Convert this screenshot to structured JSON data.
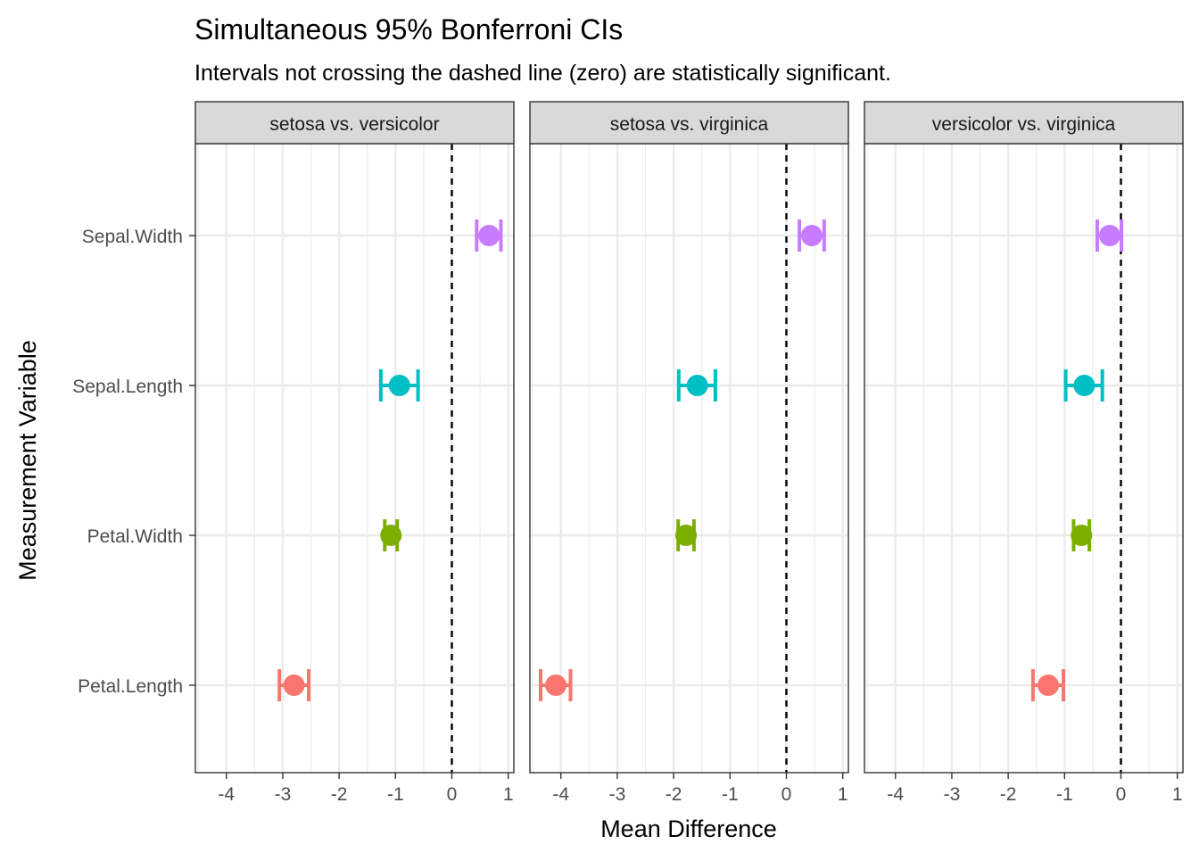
{
  "chart_data": {
    "type": "errorbar",
    "title": "Simultaneous 95% Bonferroni CIs",
    "subtitle": "Intervals not crossing the dashed line (zero) are statistically significant.",
    "xlabel": "Mean Difference",
    "ylabel": "Measurement Variable",
    "xlim": [
      -4.55,
      1.1
    ],
    "x_ticks": [
      -4,
      -3,
      -2,
      -1,
      0,
      1
    ],
    "x_tick_labels": [
      "-4",
      "-3",
      "-2",
      "-1",
      "0",
      "1"
    ],
    "categories": [
      "Petal.Length",
      "Petal.Width",
      "Sepal.Length",
      "Sepal.Width"
    ],
    "reference_line": 0,
    "grid": true,
    "legend": "none",
    "colors": {
      "Petal.Length": "#F8766D",
      "Petal.Width": "#7CAE00",
      "Sepal.Length": "#00BFC4",
      "Sepal.Width": "#C77CFF",
      "strip_fill": "#D9D9D9",
      "panel_border": "#333333",
      "grid_major": "#EBEBEB"
    },
    "panels": [
      {
        "label": "setosa vs. versicolor",
        "intervals": [
          {
            "category": "Petal.Length",
            "estimate": -2.8,
            "lower": -3.06,
            "upper": -2.54
          },
          {
            "category": "Petal.Width",
            "estimate": -1.08,
            "lower": -1.19,
            "upper": -0.97
          },
          {
            "category": "Sepal.Length",
            "estimate": -0.93,
            "lower": -1.26,
            "upper": -0.6
          },
          {
            "category": "Sepal.Width",
            "estimate": 0.66,
            "lower": 0.44,
            "upper": 0.87
          }
        ]
      },
      {
        "label": "setosa vs. virginica",
        "intervals": [
          {
            "category": "Petal.Length",
            "estimate": -4.09,
            "lower": -4.36,
            "upper": -3.83
          },
          {
            "category": "Petal.Width",
            "estimate": -1.78,
            "lower": -1.92,
            "upper": -1.64
          },
          {
            "category": "Sepal.Length",
            "estimate": -1.58,
            "lower": -1.91,
            "upper": -1.26
          },
          {
            "category": "Sepal.Width",
            "estimate": 0.45,
            "lower": 0.23,
            "upper": 0.67
          }
        ]
      },
      {
        "label": "versicolor vs. virginica",
        "intervals": [
          {
            "category": "Petal.Length",
            "estimate": -1.29,
            "lower": -1.56,
            "upper": -1.02
          },
          {
            "category": "Petal.Width",
            "estimate": -0.7,
            "lower": -0.84,
            "upper": -0.56
          },
          {
            "category": "Sepal.Length",
            "estimate": -0.65,
            "lower": -0.98,
            "upper": -0.33
          },
          {
            "category": "Sepal.Width",
            "estimate": -0.2,
            "lower": -0.42,
            "upper": 0.01
          }
        ]
      }
    ]
  }
}
